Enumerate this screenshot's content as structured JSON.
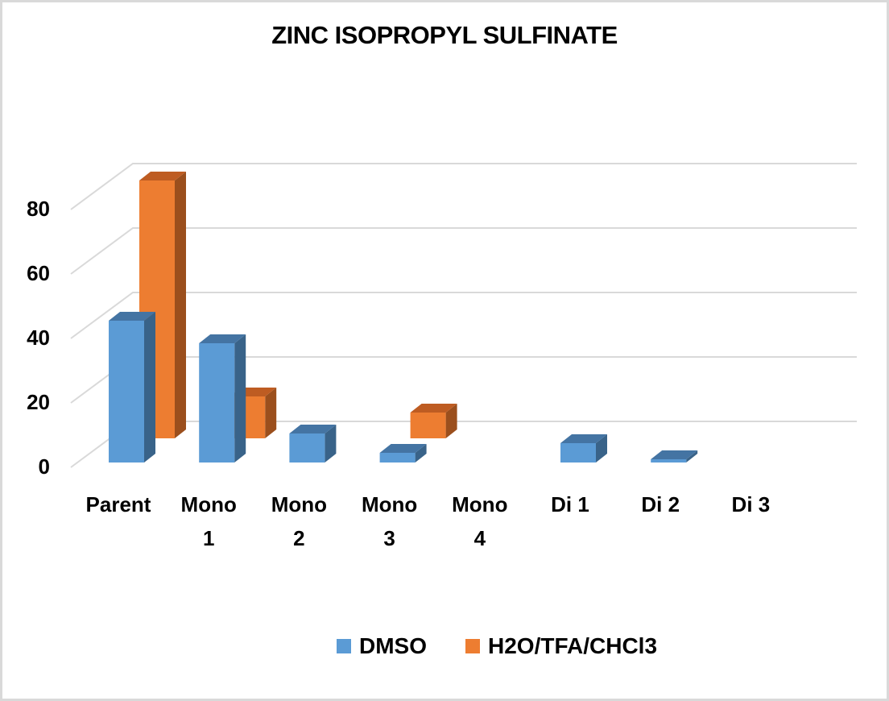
{
  "chart_data": {
    "type": "bar",
    "subtype": "3d-clustered-column",
    "title": "ZINC ISOPROPYL SULFINATE",
    "xlabel": "",
    "ylabel": "",
    "categories": [
      "Parent",
      "Mono 1",
      "Mono 2",
      "Mono 3",
      "Mono 4",
      "Di 1",
      "Di 2",
      "Di 3"
    ],
    "category_lines": [
      [
        "Parent"
      ],
      [
        "Mono",
        "1"
      ],
      [
        "Mono",
        "2"
      ],
      [
        "Mono",
        "3"
      ],
      [
        "Mono",
        "4"
      ],
      [
        "Di 1"
      ],
      [
        "Di 2"
      ],
      [
        "Di 3"
      ]
    ],
    "series": [
      {
        "name": "DMSO",
        "color": "#5B9BD5",
        "top_color": "#4474A3",
        "side_color": "#396389",
        "values": [
          44,
          37,
          9,
          3,
          0,
          6,
          1,
          0
        ]
      },
      {
        "name": "H2O/TFA/CHCl3",
        "color": "#ED7D31",
        "top_color": "#BE5C22",
        "side_color": "#9B4F1D",
        "values": [
          80,
          13,
          0,
          8,
          0,
          0,
          0,
          0
        ]
      }
    ],
    "yticks": [
      0,
      20,
      40,
      60,
      80
    ],
    "ylim": [
      0,
      80
    ],
    "grid": true,
    "legend_position": "bottom"
  },
  "legend": {
    "items": [
      {
        "label": "DMSO",
        "color": "#5B9BD5"
      },
      {
        "label": "H2O/TFA/CHCl3",
        "color": "#ED7D31"
      }
    ]
  }
}
